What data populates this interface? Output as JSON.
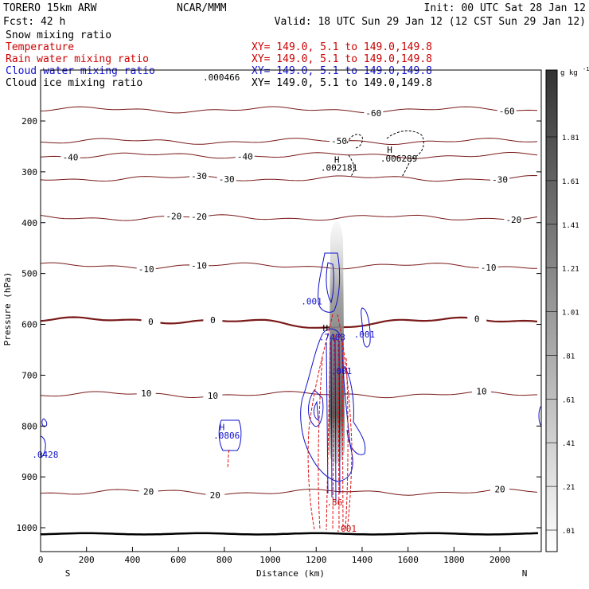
{
  "header": {
    "model": "TORERO  15km ARW",
    "center": "NCAR/MMM",
    "init": "Init: 00 UTC Sat 28 Jan 12",
    "fcst": "Fcst:   42 h",
    "valid": "Valid: 18 UTC Sun 29 Jan 12 (12 CST Sun 29 Jan 12)"
  },
  "fields": [
    {
      "name": "Snow mixing ratio",
      "color": "#000000",
      "xy": ""
    },
    {
      "name": "Temperature",
      "color": "#cc0000",
      "xy": "XY= 149.0,  5.1 to 149.0,149.8"
    },
    {
      "name": "Rain water mixing ratio",
      "color": "#cc0000",
      "xy": "XY= 149.0,  5.1 to 149.0,149.8"
    },
    {
      "name": "Cloud water mixing ratio",
      "color": "#1010cc",
      "xy": "XY= 149.0,  5.1 to 149.0,149.8"
    },
    {
      "name": "Cloud ice mixing ratio",
      "color": "#000000",
      "xy": "XY= 149.0,  5.1 to 149.0,149.8"
    }
  ],
  "cloud_ice_max_label": ".000466",
  "chart_data": {
    "type": "cross-section contour",
    "xlabel": "Distance (km)",
    "ylabel": "Pressure (hPa)",
    "xlim": [
      0,
      2180
    ],
    "ylim": [
      1030,
      90
    ],
    "x_ticks": [
      0,
      200,
      400,
      600,
      800,
      1000,
      1200,
      1400,
      1600,
      1800,
      2000
    ],
    "y_ticks": [
      200,
      300,
      400,
      500,
      600,
      700,
      800,
      900,
      1000
    ],
    "endpoints": {
      "left": "S",
      "right": "N"
    },
    "colorbar": {
      "unit": "g kg",
      "ticks": [
        ".01",
        ".21",
        ".41",
        ".61",
        ".81",
        "1.01",
        "1.21",
        "1.41",
        "1.61",
        "1.81"
      ]
    },
    "temperature_isotherms": [
      {
        "value": 20,
        "p": 930,
        "labels": [
          {
            "x": 470,
            "text": "20"
          },
          {
            "x": 760,
            "text": "20"
          },
          {
            "x": 2000,
            "text": "20"
          }
        ]
      },
      {
        "value": 10,
        "p": 738,
        "labels": [
          {
            "x": 460,
            "text": "10"
          },
          {
            "x": 750,
            "text": "10"
          },
          {
            "x": 1920,
            "text": "10"
          }
        ]
      },
      {
        "value": 0,
        "p": 592,
        "labels": [
          {
            "x": 480,
            "text": "0"
          },
          {
            "x": 750,
            "text": "0"
          },
          {
            "x": 1900,
            "text": "0"
          }
        ]
      },
      {
        "value": -10,
        "p": 485,
        "labels": [
          {
            "x": 460,
            "text": "-10"
          },
          {
            "x": 690,
            "text": "-10"
          },
          {
            "x": 1950,
            "text": "-10"
          }
        ]
      },
      {
        "value": -20,
        "p": 390,
        "labels": [
          {
            "x": 580,
            "text": "-20"
          },
          {
            "x": 690,
            "text": "-20"
          },
          {
            "x": 2060,
            "text": "-20"
          }
        ]
      },
      {
        "value": -30,
        "p": 313,
        "labels": [
          {
            "x": 690,
            "text": "-30"
          },
          {
            "x": 810,
            "text": "-30"
          },
          {
            "x": 2000,
            "text": "-30"
          }
        ]
      },
      {
        "value": -40,
        "p": 268,
        "labels": [
          {
            "x": 130,
            "text": "-40"
          },
          {
            "x": 890,
            "text": "-40"
          }
        ]
      },
      {
        "value": -50,
        "p": 240,
        "labels": [
          {
            "x": 1300,
            "text": "-50"
          }
        ]
      },
      {
        "value": -60,
        "p": 178,
        "labels": [
          {
            "x": 1450,
            "text": "-60"
          },
          {
            "x": 2030,
            "text": "-60"
          }
        ]
      }
    ],
    "annotations": [
      {
        "text": "H",
        "x": 1290,
        "p": 282,
        "color": "#000000"
      },
      {
        "text": ".002181",
        "x": 1300,
        "p": 298,
        "color": "#000000"
      },
      {
        "text": "H",
        "x": 1520,
        "p": 263,
        "color": "#000000"
      },
      {
        "text": ".006289",
        "x": 1560,
        "p": 280,
        "color": "#000000"
      },
      {
        "text": ".001",
        "x": 1180,
        "p": 561,
        "color": "#1010cc"
      },
      {
        "text": ".001",
        "x": 1410,
        "p": 626,
        "color": "#1010cc"
      },
      {
        "text": ".001",
        "x": 1310,
        "p": 698,
        "color": "#1010cc"
      },
      {
        "text": "H",
        "x": 1240,
        "p": 613,
        "color": "#000000"
      },
      {
        "text": ".7403",
        "x": 1270,
        "p": 631,
        "color": "#1010cc"
      },
      {
        "text": "H",
        "x": 790,
        "p": 808,
        "color": "#1010cc"
      },
      {
        "text": ".0806",
        "x": 810,
        "p": 825,
        "color": "#1010cc"
      },
      {
        "text": ".0428",
        "x": 20,
        "p": 862,
        "color": "#1010cc"
      },
      {
        "text": ".001",
        "x": 1330,
        "p": 1008,
        "color": "#cc0000"
      },
      {
        "text": ".56",
        "x": 1280,
        "p": 956,
        "color": "#cc0000"
      }
    ]
  }
}
